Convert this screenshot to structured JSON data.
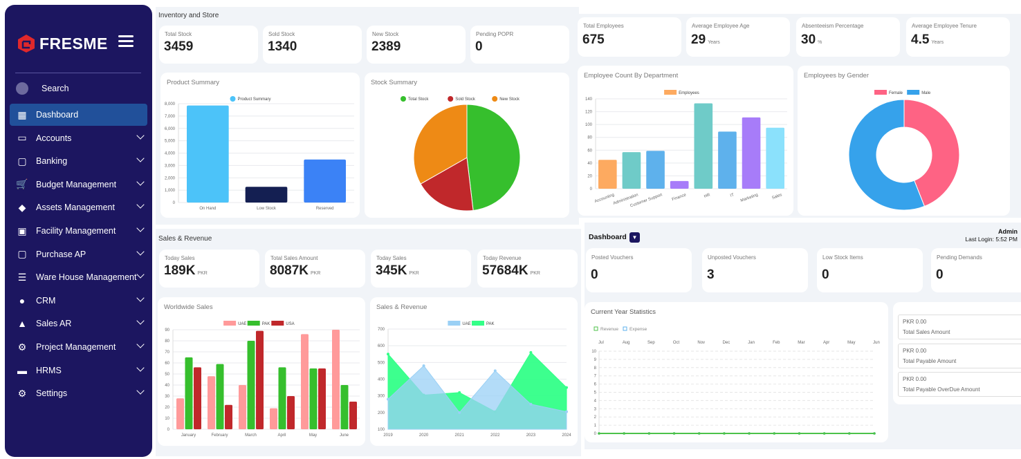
{
  "colors": {
    "sidebar": "#1c1660",
    "active": "#21509a",
    "panel": "#f1f4f8"
  },
  "sidebar": {
    "brand": "FRESME",
    "search_label": "Search",
    "items": [
      {
        "label": "Dashboard",
        "icon": "dashboard-grid-icon",
        "active": true
      },
      {
        "label": "Accounts",
        "icon": "wallet-icon"
      },
      {
        "label": "Banking",
        "icon": "basket-icon"
      },
      {
        "label": "Budget Management",
        "icon": "cart-icon"
      },
      {
        "label": "Assets Management",
        "icon": "tag-icon"
      },
      {
        "label": "Facility Management",
        "icon": "calendar-check-icon"
      },
      {
        "label": "Purchase AP",
        "icon": "basket-icon"
      },
      {
        "label": "Ware House Management",
        "icon": "checklist-icon"
      },
      {
        "label": "CRM",
        "icon": "people-icon"
      },
      {
        "label": "Sales AR",
        "icon": "chart-up-icon"
      },
      {
        "label": "Project Management",
        "icon": "project-gear-icon"
      },
      {
        "label": "HRMS",
        "icon": "card-icon"
      },
      {
        "label": "Settings",
        "icon": "gear-icon"
      }
    ]
  },
  "inventory": {
    "title": "Inventory and Store",
    "stats": [
      {
        "label": "Total Stock",
        "value": "3459"
      },
      {
        "label": "Sold Stock",
        "value": "1340"
      },
      {
        "label": "New Stock",
        "value": "2389"
      },
      {
        "label": "Pending POPR",
        "value": "0"
      }
    ]
  },
  "hr": {
    "stats": [
      {
        "label": "Total Employees",
        "value": "675",
        "unit": ""
      },
      {
        "label": "Average Employee Age",
        "value": "29",
        "unit": "Years"
      },
      {
        "label": "Absenteeism Percentage",
        "value": "30",
        "unit": "%"
      },
      {
        "label": "Average Employee Tenure",
        "value": "4.5",
        "unit": "Years"
      }
    ]
  },
  "sales": {
    "title": "Sales & Revenue",
    "stats": [
      {
        "label": "Today Sales",
        "value": "189K",
        "unit": "PKR"
      },
      {
        "label": "Total Sales Amount",
        "value": "8087K",
        "unit": "PKR"
      },
      {
        "label": "Today Sales",
        "value": "345K",
        "unit": "PKR"
      },
      {
        "label": "Today Revenue",
        "value": "57684K",
        "unit": "PKR"
      }
    ]
  },
  "dashboard": {
    "title": "Dashboard",
    "user": "Admin",
    "last_login": "Last Login: 5:52 PM",
    "stats": [
      {
        "label": "Posted Vouchers",
        "value": "0"
      },
      {
        "label": "Unposted Vouchers",
        "value": "3"
      },
      {
        "label": "Low Stock Items",
        "value": "0"
      },
      {
        "label": "Pending Demands",
        "value": "0"
      }
    ],
    "amounts": [
      {
        "amount": "PKR 0.00",
        "label": "Total Sales Amount"
      },
      {
        "amount": "PKR 0.00",
        "label": "Total Payable Amount"
      },
      {
        "amount": "PKR 0.00",
        "label": "Total Payable OverDue Amount"
      }
    ]
  },
  "chart_data": [
    {
      "type": "bar",
      "title": "Product Summary",
      "legend": [
        "Product Summary"
      ],
      "categories": [
        "On Hand",
        "Low Stock",
        "Reserved"
      ],
      "values": [
        7850,
        1270,
        3480
      ],
      "colors": [
        "#4cc3f9",
        "#141f52",
        "#3b82f6"
      ],
      "ylim": [
        0,
        8000
      ],
      "yticks": [
        "0",
        "1,000",
        "2,000",
        "3,000",
        "4,000",
        "5,000",
        "6,000",
        "7,000",
        "8,000"
      ],
      "grid": true,
      "legend_position": "top"
    },
    {
      "type": "pie",
      "title": "Stock Summary",
      "labels": [
        "Total Stock",
        "Sold Stock",
        "New Stock"
      ],
      "values": [
        3459,
        1340,
        2389
      ],
      "colors": [
        "#36bf2d",
        "#c0282b",
        "#ee8a15"
      ],
      "legend_position": "top"
    },
    {
      "type": "bar",
      "title": "Employee Count By Department",
      "legend": [
        "Employees"
      ],
      "categories": [
        "Accounting",
        "Administration",
        "Customer Support",
        "Finance",
        "HR",
        "IT",
        "Marketing",
        "Sales"
      ],
      "values": [
        45,
        57,
        59,
        12,
        133,
        89,
        111,
        95
      ],
      "colors": [
        "#fdaa60",
        "#6fcbc8",
        "#5eb1ec",
        "#a77cf9",
        "#6fcbc8",
        "#5eb1ec",
        "#a77cf9",
        "#8be1fc"
      ],
      "ylim": [
        0,
        140
      ],
      "yticks": [
        "0",
        "20",
        "40",
        "60",
        "80",
        "100",
        "120",
        "140"
      ],
      "grid": true,
      "legend_position": "top"
    },
    {
      "type": "pie",
      "subtype": "doughnut",
      "title": "Employees by Gender",
      "labels": [
        "Female",
        "Male"
      ],
      "values": [
        44,
        56
      ],
      "colors": [
        "#fe6384",
        "#36a2eb"
      ],
      "legend_position": "top"
    },
    {
      "type": "bar",
      "title": "Worldwide Sales",
      "categories": [
        "January",
        "February",
        "March",
        "April",
        "May",
        "June"
      ],
      "series": [
        {
          "name": "UAE",
          "values": [
            28,
            48,
            40,
            19,
            86,
            90
          ],
          "color": "#ff9a9a"
        },
        {
          "name": "PAK",
          "values": [
            65,
            59,
            80,
            56,
            55,
            40
          ],
          "color": "#36bf2d"
        },
        {
          "name": "USA",
          "values": [
            56,
            22,
            89,
            30,
            55,
            25
          ],
          "color": "#c0282b"
        }
      ],
      "ylim": [
        0,
        90
      ],
      "yticks": [
        "0",
        "10",
        "20",
        "30",
        "40",
        "50",
        "60",
        "70",
        "80",
        "90"
      ],
      "grid": true,
      "legend_position": "top"
    },
    {
      "type": "area",
      "title": "Sales & Revenue",
      "x": [
        "2019",
        "2020",
        "2021",
        "2022",
        "2023",
        "2024"
      ],
      "series": [
        {
          "name": "UAE",
          "values": [
            280,
            480,
            200,
            450,
            250,
            205
          ],
          "color": "#9ad0f5"
        },
        {
          "name": "PAK",
          "values": [
            550,
            305,
            320,
            205,
            560,
            350
          ],
          "color": "#33ff88"
        }
      ],
      "ylim": [
        100,
        700
      ],
      "yticks": [
        "100",
        "200",
        "300",
        "400",
        "500",
        "600",
        "700"
      ],
      "grid": true,
      "legend_position": "top"
    },
    {
      "type": "line",
      "title": "Current Year Statistics",
      "x": [
        "Jul",
        "Aug",
        "Sep",
        "Oct",
        "Nov",
        "Dec",
        "Jan",
        "Feb",
        "Mar",
        "Apr",
        "May",
        "Jun"
      ],
      "series": [
        {
          "name": "Revenue",
          "values": [
            0,
            0,
            0,
            0,
            0,
            0,
            0,
            0,
            0,
            0,
            0,
            0
          ],
          "color": "#4cc24a"
        },
        {
          "name": "Expense",
          "values": [
            0,
            0,
            0,
            0,
            0,
            0,
            0,
            0,
            0,
            0,
            0,
            0
          ],
          "color": "#5eb1ec"
        }
      ],
      "ylim": [
        0,
        10
      ],
      "yticks": [
        "0",
        "1",
        "2",
        "3",
        "4",
        "5",
        "6",
        "7",
        "8",
        "9",
        "10"
      ],
      "grid": true,
      "legend_position": "top-left"
    }
  ]
}
